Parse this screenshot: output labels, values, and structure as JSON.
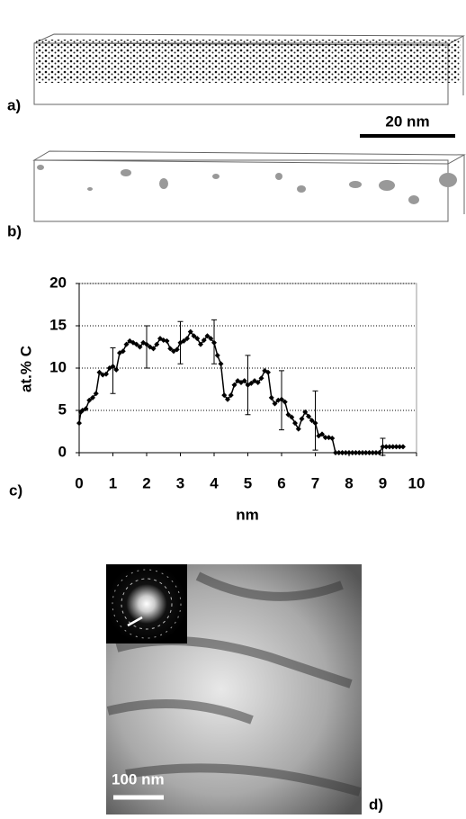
{
  "panels": {
    "a": {
      "label": "a)",
      "scale_bar": "20 nm"
    },
    "b": {
      "label": "b)"
    },
    "c": {
      "label": "c)"
    },
    "d": {
      "label": "d)",
      "scale_bar": "100 nm"
    }
  },
  "chart_data": {
    "type": "line",
    "ylabel": "at.% C",
    "xlabel": "nm",
    "xlim": [
      0,
      10
    ],
    "ylim": [
      0,
      20
    ],
    "xticks": [
      0,
      1,
      2,
      3,
      4,
      5,
      6,
      7,
      8,
      9,
      10
    ],
    "yticks": [
      0,
      5,
      10,
      15,
      20
    ],
    "grid": true,
    "series": [
      {
        "color": "#000000",
        "x": [
          0,
          0.05,
          0.1,
          0.2,
          0.3,
          0.4,
          0.5,
          0.6,
          0.7,
          0.8,
          0.9,
          1.0,
          1.1,
          1.2,
          1.3,
          1.4,
          1.5,
          1.6,
          1.7,
          1.8,
          1.9,
          2.0,
          2.1,
          2.2,
          2.3,
          2.4,
          2.5,
          2.6,
          2.7,
          2.8,
          2.9,
          3.0,
          3.1,
          3.2,
          3.3,
          3.4,
          3.5,
          3.6,
          3.7,
          3.8,
          3.9,
          4.0,
          4.1,
          4.2,
          4.3,
          4.4,
          4.5,
          4.6,
          4.7,
          4.8,
          4.9,
          5.0,
          5.1,
          5.2,
          5.3,
          5.4,
          5.5,
          5.6,
          5.7,
          5.8,
          5.9,
          6.0,
          6.1,
          6.2,
          6.3,
          6.4,
          6.5,
          6.6,
          6.7,
          6.8,
          6.9,
          7.0,
          7.1,
          7.2,
          7.3,
          7.4,
          7.5,
          7.6,
          7.7,
          7.8,
          7.9,
          8.0,
          8.1,
          8.2,
          8.3,
          8.4,
          8.5,
          8.6,
          8.7,
          8.8,
          8.9,
          9.0,
          9.1,
          9.2,
          9.3,
          9.4,
          9.5,
          9.6
        ],
        "values": [
          3.5,
          4.8,
          5,
          5.2,
          6.2,
          6.5,
          7,
          9.5,
          9.2,
          9.3,
          10,
          10.2,
          9.8,
          11.8,
          12,
          12.8,
          13.2,
          13,
          12.8,
          12.5,
          13,
          12.8,
          12.5,
          12.3,
          12.8,
          13.5,
          13.3,
          13.2,
          12.3,
          12,
          12.2,
          13,
          13.2,
          13.5,
          14.3,
          13.8,
          13.5,
          12.8,
          13.3,
          13.8,
          13.5,
          13,
          11.5,
          10.5,
          6.8,
          6.3,
          6.8,
          8,
          8.5,
          8.3,
          8.5,
          8,
          8.2,
          8.5,
          8.3,
          8.8,
          9.7,
          9.5,
          6.5,
          5.8,
          6.2,
          6.3,
          6,
          4.5,
          4.2,
          3.5,
          2.8,
          4,
          4.8,
          4.3,
          3.8,
          3.5,
          2,
          2.2,
          1.8,
          1.8,
          1.7,
          0,
          0,
          0,
          0,
          0,
          0,
          0,
          0,
          0,
          0,
          0,
          0,
          0,
          0,
          0.7,
          0.7,
          0.7,
          0.7,
          0.7,
          0.7,
          0.7
        ]
      }
    ],
    "error_bars": {
      "x": [
        1,
        2,
        3,
        4,
        5,
        6,
        7,
        9
      ],
      "values": [
        9.7,
        12.5,
        13,
        13.1,
        8,
        6.2,
        3.8,
        0.7
      ],
      "errors": [
        2.7,
        2.5,
        2.5,
        2.6,
        3.5,
        3.5,
        3.5,
        1
      ]
    }
  }
}
